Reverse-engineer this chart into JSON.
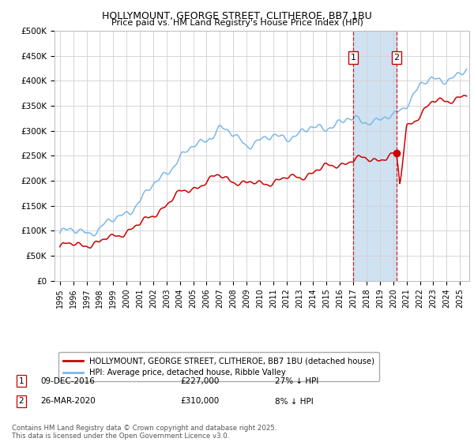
{
  "title": "HOLLYMOUNT, GEORGE STREET, CLITHEROE, BB7 1BU",
  "subtitle": "Price paid vs. HM Land Registry's House Price Index (HPI)",
  "ylim": [
    0,
    500000
  ],
  "yticks": [
    0,
    50000,
    100000,
    150000,
    200000,
    250000,
    300000,
    350000,
    400000,
    450000,
    500000
  ],
  "ytick_labels": [
    "£0",
    "£50K",
    "£100K",
    "£150K",
    "£200K",
    "£250K",
    "£300K",
    "£350K",
    "£400K",
    "£450K",
    "£500K"
  ],
  "hpi_color": "#7bb8e8",
  "price_color": "#cc0000",
  "marker1_year": 2017.0,
  "marker2_year": 2020.25,
  "marker1_date": "09-DEC-2016",
  "marker1_price": 227000,
  "marker1_pct": "27% ↓ HPI",
  "marker2_date": "26-MAR-2020",
  "marker2_price": 310000,
  "marker2_pct": "8% ↓ HPI",
  "legend_label1": "HOLLYMOUNT, GEORGE STREET, CLITHEROE, BB7 1BU (detached house)",
  "legend_label2": "HPI: Average price, detached house, Ribble Valley",
  "footnote": "Contains HM Land Registry data © Crown copyright and database right 2025.\nThis data is licensed under the Open Government Licence v3.0.",
  "background_color": "#ffffff",
  "grid_color": "#d0d0d0",
  "shading_color": "#c8ddf0",
  "xlim_left": 1994.6,
  "xlim_right": 2025.7
}
